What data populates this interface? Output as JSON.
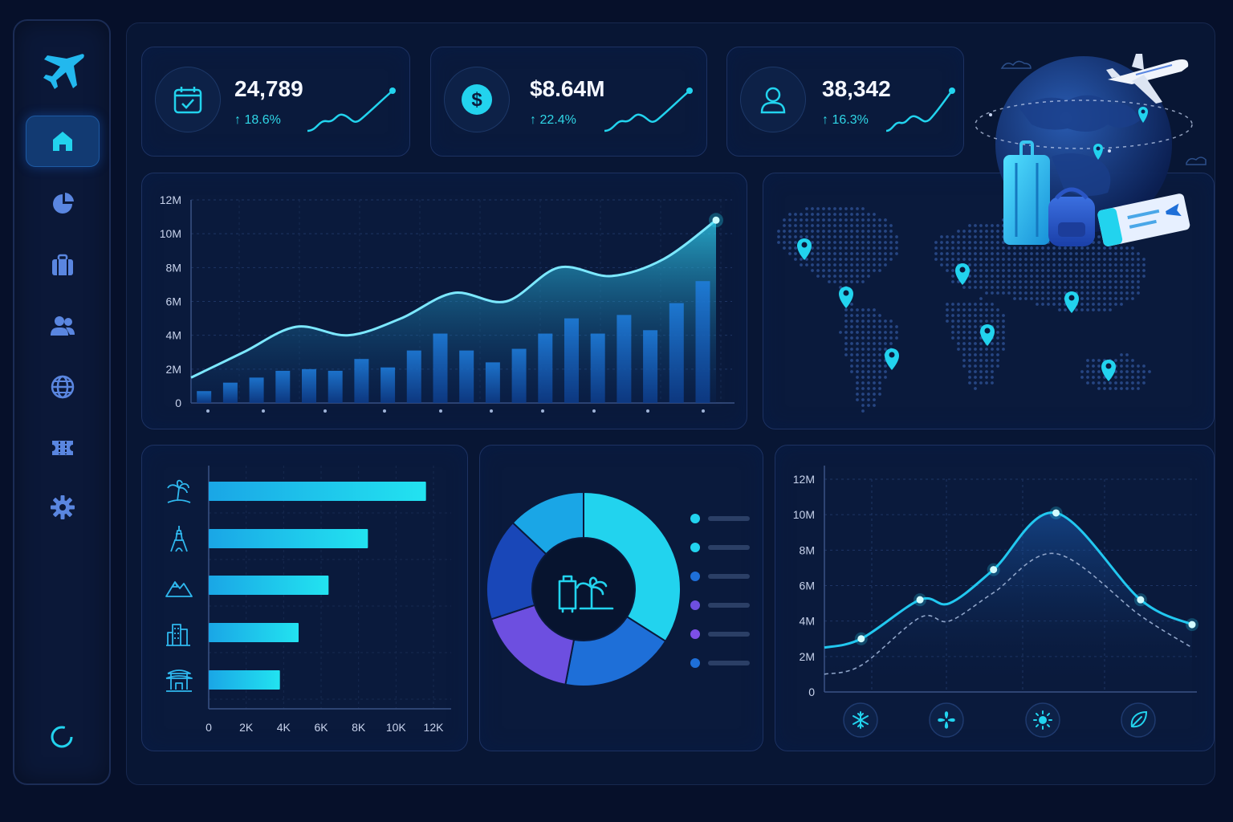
{
  "colors": {
    "background": "#06102a",
    "panel": "#0a1a3c",
    "accent_cyan": "#22d3ee",
    "accent_blue": "#1e6fd8",
    "accent_purple": "#6d4fe0",
    "icon_blue": "#5a86e0"
  },
  "sidebar": {
    "logo_icon": "airplane-icon",
    "items": [
      {
        "icon": "home-icon",
        "active": true
      },
      {
        "icon": "pie-chart-icon",
        "active": false
      },
      {
        "icon": "briefcase-icon",
        "active": false
      },
      {
        "icon": "users-icon",
        "active": false
      },
      {
        "icon": "globe-icon",
        "active": false
      },
      {
        "icon": "ticket-icon",
        "active": false
      },
      {
        "icon": "gear-icon",
        "active": false
      }
    ],
    "bottom_icon": "loading-ring-icon"
  },
  "kpis": [
    {
      "icon": "calendar-check-icon",
      "value": "24,789",
      "change": "18.6%"
    },
    {
      "icon": "dollar-icon",
      "value": "$8.64M",
      "change": "22.4%"
    },
    {
      "icon": "user-icon",
      "value": "38,342",
      "change": "16.3%"
    }
  ],
  "chart_data": [
    {
      "type": "area",
      "ylim": [
        0,
        12
      ],
      "y_ticks": [
        "0",
        "2M",
        "4M",
        "6M",
        "8M",
        "10M",
        "12M"
      ],
      "x_tick_labels": [],
      "area_values": [
        1.5,
        3.0,
        4.5,
        4.0,
        5.0,
        6.5,
        6.0,
        8.0,
        7.5,
        8.5,
        10.8
      ],
      "bar_values": [
        0.7,
        1.2,
        1.5,
        1.9,
        2.0,
        1.9,
        2.6,
        2.1,
        3.1,
        4.1,
        3.1,
        2.4,
        3.2,
        4.1,
        5.0,
        4.1,
        5.2,
        4.3,
        5.9,
        7.2
      ]
    },
    {
      "type": "bar",
      "orientation": "horizontal",
      "categories": [
        "beach",
        "paris",
        "mountains",
        "city",
        "temple"
      ],
      "category_icons": [
        "palm-tree-icon",
        "eiffel-tower-icon",
        "mountain-icon",
        "city-buildings-icon",
        "pagoda-icon"
      ],
      "values": [
        11600,
        8500,
        6400,
        4800,
        3800
      ],
      "xlim": [
        0,
        12000
      ],
      "x_ticks": [
        "0",
        "2K",
        "4K",
        "6K",
        "8K",
        "10K",
        "12K"
      ]
    },
    {
      "type": "pie",
      "donut": true,
      "center_icon": "luggage-palm-icon",
      "values": [
        34,
        19,
        17,
        17,
        13
      ],
      "colors": [
        "#22d3ee",
        "#1e6fd8",
        "#6d4fe0",
        "#1947b8",
        "#1aa6e6"
      ],
      "legend_markers": [
        "#22d3ee",
        "#22d3ee",
        "#1e6fd8",
        "#6d4fe0",
        "#7c4fe6",
        "#1e6fd8"
      ]
    },
    {
      "type": "line",
      "ylim": [
        0,
        12
      ],
      "y_ticks": [
        "0",
        "2M",
        "4M",
        "6M",
        "8M",
        "10M",
        "12M"
      ],
      "x_icons": [
        "snowflake-icon",
        "flower-icon",
        "sun-icon",
        "leaf-icon"
      ],
      "series": [
        {
          "values": [
            2.5,
            3.0,
            5.2,
            5.0,
            6.9,
            10.1,
            5.2,
            3.8
          ],
          "x": [
            0,
            0.1,
            0.26,
            0.34,
            0.46,
            0.63,
            0.86,
            1.0
          ],
          "style": "solid"
        },
        {
          "values": [
            1.0,
            1.5,
            4.2,
            4.0,
            5.6,
            7.8,
            4.3,
            2.5
          ],
          "x": [
            0,
            0.1,
            0.26,
            0.34,
            0.46,
            0.63,
            0.86,
            1.0
          ],
          "style": "dashed"
        }
      ]
    }
  ],
  "map": {
    "pins": 9,
    "illustration": "globe-airplane-luggage-ticket-illustration"
  }
}
